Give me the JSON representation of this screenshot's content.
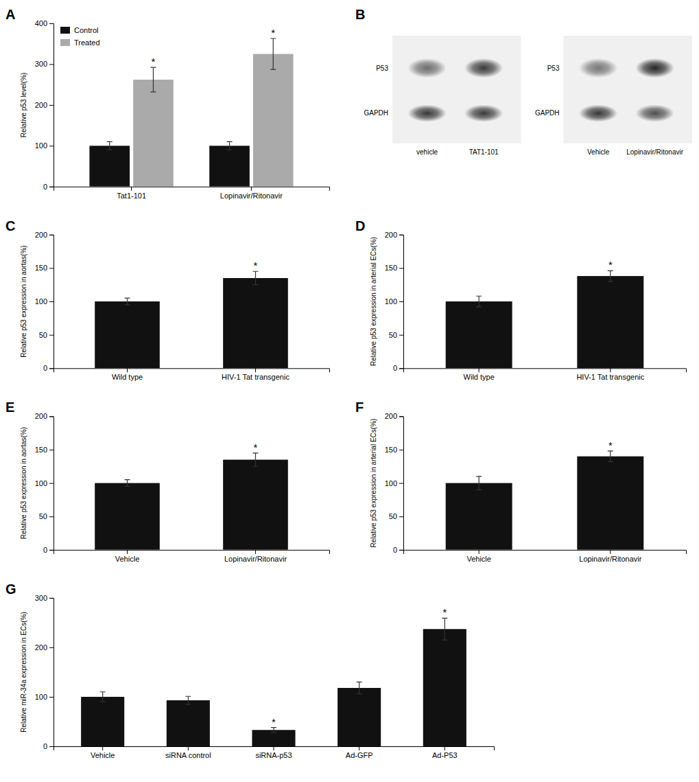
{
  "chart_data": [
    {
      "type": "bar",
      "title": "A",
      "categories": [
        "Tat1-101",
        "Lopinavir/Ritonavir"
      ],
      "series": [
        {
          "name": "Control",
          "color": "#111111",
          "values": [
            100,
            100
          ],
          "errors": [
            10,
            10
          ],
          "annotations": [
            null,
            null
          ]
        },
        {
          "name": "Treated",
          "color": "#aaaaaa",
          "values": [
            262,
            325
          ],
          "errors": [
            30,
            38
          ],
          "annotations": [
            "*",
            "*"
          ]
        }
      ],
      "ylabel": "Relative p53 level(%)",
      "ylim": [
        0,
        400
      ],
      "yticks": [
        0,
        100,
        200,
        300,
        400
      ],
      "legend": "upper-left",
      "grid": false
    },
    {
      "type": "blot",
      "title": "B",
      "blots": [
        {
          "categories": [
            "vehicle",
            "TAT1-101"
          ],
          "series": [
            {
              "name": "P53",
              "values": [
                0.65,
                0.9
              ]
            },
            {
              "name": "GAPDH",
              "values": [
                0.92,
                0.9
              ]
            }
          ]
        },
        {
          "categories": [
            "Vehicle",
            "Lopinavir/Ritonavir"
          ],
          "series": [
            {
              "name": "P53",
              "values": [
                0.6,
                1.0
              ]
            },
            {
              "name": "GAPDH",
              "values": [
                0.92,
                0.8
              ]
            }
          ]
        }
      ]
    },
    {
      "type": "bar",
      "title": "C",
      "categories": [
        "Wild type",
        "HIV-1 Tat transgenic"
      ],
      "values": [
        100,
        135
      ],
      "errors": [
        5,
        10
      ],
      "annotations": [
        null,
        "*"
      ],
      "color": "#111111",
      "ylabel": "Relative p53 expression in aortas(%)",
      "ylim": [
        0,
        200
      ],
      "yticks": [
        0,
        50,
        100,
        150,
        200
      ],
      "grid": false
    },
    {
      "type": "bar",
      "title": "D",
      "categories": [
        "Wild type",
        "HIV-1 Tat transgenic"
      ],
      "values": [
        100,
        138
      ],
      "errors": [
        8,
        8
      ],
      "annotations": [
        null,
        "*"
      ],
      "color": "#111111",
      "ylabel": "Relative p53 expression in arterial ECs(%)",
      "ylim": [
        0,
        200
      ],
      "yticks": [
        0,
        50,
        100,
        150,
        200
      ],
      "grid": false
    },
    {
      "type": "bar",
      "title": "E",
      "categories": [
        "Vehicle",
        "Lopinavir/Ritonavir"
      ],
      "values": [
        100,
        135
      ],
      "errors": [
        5,
        10
      ],
      "annotations": [
        null,
        "*"
      ],
      "color": "#111111",
      "ylabel": "Relative p53 expression in aortas(%)",
      "ylim": [
        0,
        200
      ],
      "yticks": [
        0,
        50,
        100,
        150,
        200
      ],
      "grid": false
    },
    {
      "type": "bar",
      "title": "F",
      "categories": [
        "Vehicle",
        "Lopinavir/Ritonavir"
      ],
      "values": [
        100,
        140
      ],
      "errors": [
        10,
        8
      ],
      "annotations": [
        null,
        "*"
      ],
      "color": "#111111",
      "ylabel": "Relative p53 expression in arterial ECs(%)",
      "ylim": [
        0,
        200
      ],
      "yticks": [
        0,
        50,
        100,
        150,
        200
      ],
      "grid": false
    },
    {
      "type": "bar",
      "title": "G",
      "categories": [
        "Vehicle",
        "siRNA control",
        "siRNA-p53",
        "Ad-GFP",
        "Ad-P53"
      ],
      "values": [
        100,
        93,
        33,
        118,
        237
      ],
      "errors": [
        10,
        8,
        5,
        12,
        22
      ],
      "annotations": [
        null,
        null,
        "*",
        null,
        "*"
      ],
      "color": "#111111",
      "ylabel": "Relative miR-34a expression in ECs(%)",
      "ylim": [
        0,
        300
      ],
      "yticks": [
        0,
        100,
        200,
        300
      ],
      "grid": false
    }
  ]
}
